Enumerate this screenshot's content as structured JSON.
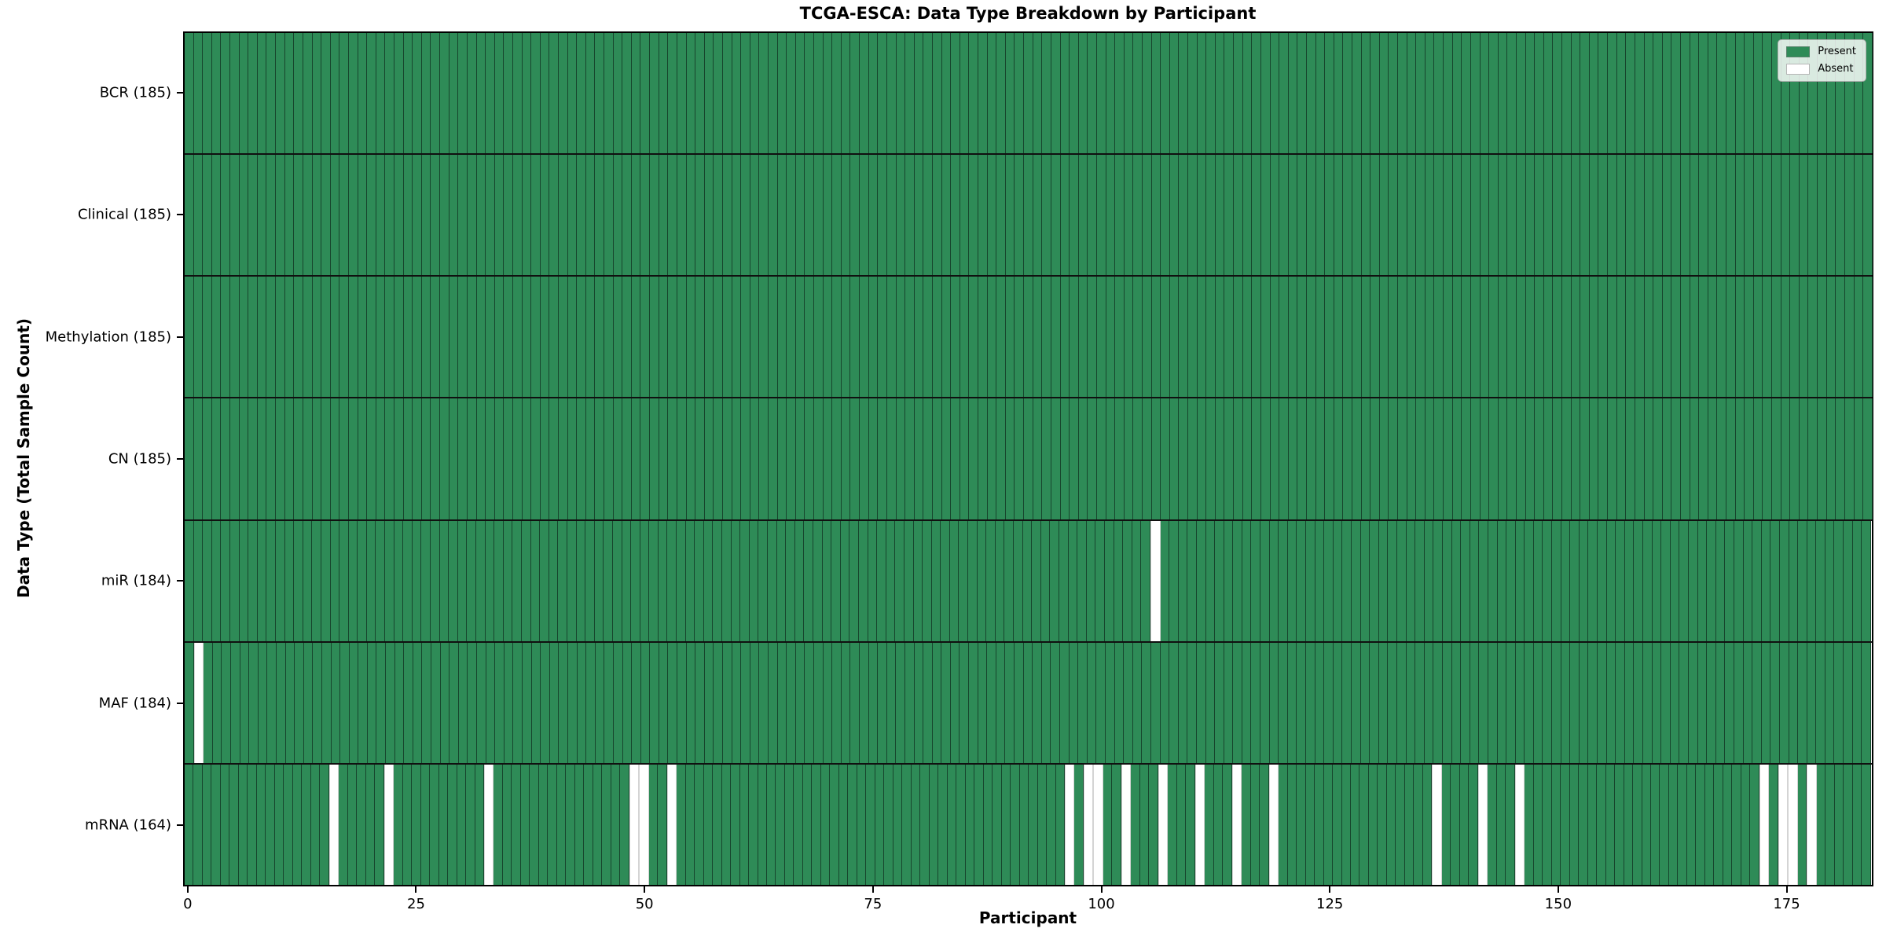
{
  "title": "TCGA-ESCA: Data Type Breakdown by Participant",
  "x_axis": {
    "label": "Participant",
    "ticks": [
      0,
      25,
      50,
      75,
      100,
      125,
      150,
      175
    ]
  },
  "y_axis": {
    "label": "Data Type (Total Sample Count)"
  },
  "legend": {
    "entries": [
      {
        "label": "Present",
        "color": "#2e8b57"
      },
      {
        "label": "Absent",
        "color": "#ffffff"
      }
    ]
  },
  "colors": {
    "present": "#2e8b57",
    "absent": "#ffffff"
  },
  "chart_data": {
    "type": "heatmap",
    "title": "TCGA-ESCA: Data Type Breakdown by Participant",
    "xlabel": "Participant",
    "ylabel": "Data Type (Total Sample Count)",
    "x_range": [
      0,
      185
    ],
    "n_participants": 185,
    "legend_position": "upper right",
    "value_states": {
      "present": 1,
      "absent": 0
    },
    "rows": [
      {
        "name": "BCR",
        "label": "BCR (185)",
        "total_samples": 185,
        "absent_participants": []
      },
      {
        "name": "Clinical",
        "label": "Clinical (185)",
        "total_samples": 185,
        "absent_participants": []
      },
      {
        "name": "Methylation",
        "label": "Methylation (185)",
        "total_samples": 185,
        "absent_participants": []
      },
      {
        "name": "CN",
        "label": "CN (185)",
        "total_samples": 185,
        "absent_participants": []
      },
      {
        "name": "miR",
        "label": "miR (184)",
        "total_samples": 184,
        "absent_participants": [
          106
        ]
      },
      {
        "name": "MAF",
        "label": "MAF (184)",
        "total_samples": 184,
        "absent_participants": [
          1
        ]
      },
      {
        "name": "mRNA",
        "label": "mRNA (164)",
        "total_samples": 164,
        "absent_participants": [
          16,
          22,
          33,
          49,
          50,
          53,
          97,
          99,
          100,
          103,
          107,
          111,
          115,
          119,
          137,
          142,
          146,
          173,
          175,
          176,
          178
        ]
      }
    ]
  }
}
